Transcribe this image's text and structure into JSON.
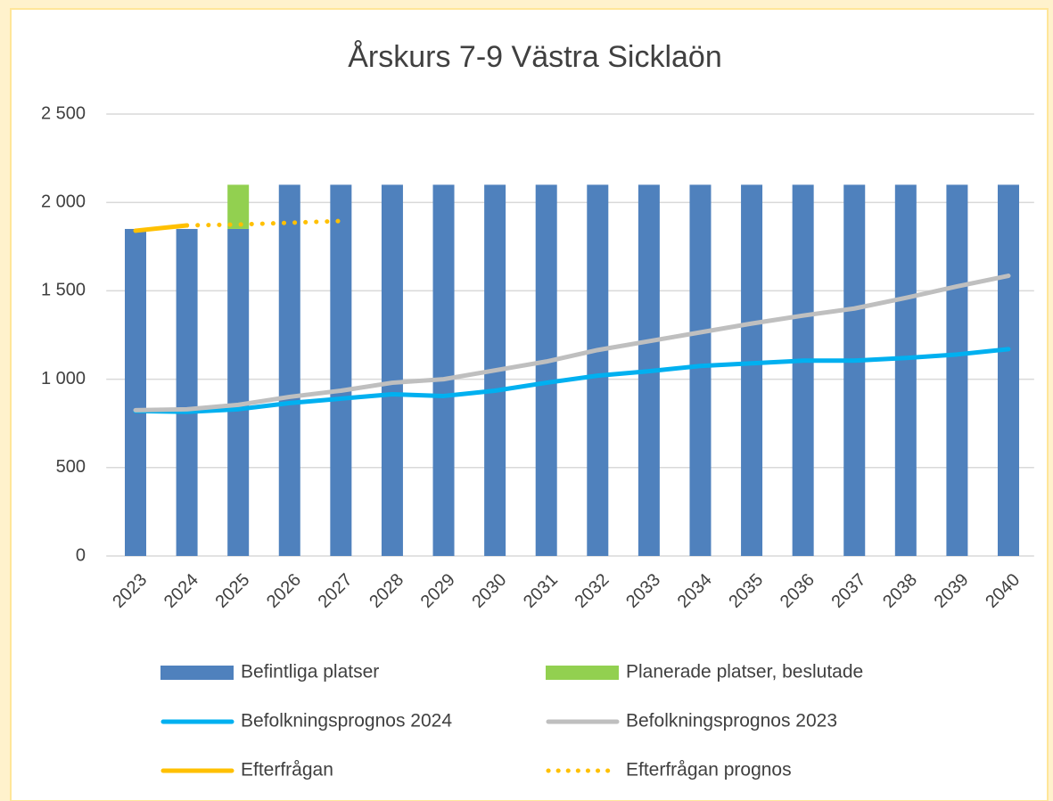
{
  "chart_data": {
    "type": "bar",
    "title": "Årskurs 7-9 Västra Sicklaön",
    "stacked": true,
    "categories": [
      "2023",
      "2024",
      "2025",
      "2026",
      "2027",
      "2028",
      "2029",
      "2030",
      "2031",
      "2032",
      "2033",
      "2034",
      "2035",
      "2036",
      "2037",
      "2038",
      "2039",
      "2040"
    ],
    "series": [
      {
        "name": "Befintliga platser",
        "type": "bar",
        "color": "#4f81bd",
        "values": [
          1850,
          1850,
          1850,
          2100,
          2100,
          2100,
          2100,
          2100,
          2100,
          2100,
          2100,
          2100,
          2100,
          2100,
          2100,
          2100,
          2100,
          2100
        ]
      },
      {
        "name": "Planerade platser, beslutade",
        "type": "bar",
        "color": "#92d050",
        "values": [
          null,
          null,
          250,
          null,
          null,
          null,
          null,
          null,
          null,
          null,
          null,
          null,
          null,
          null,
          null,
          null,
          null,
          null
        ]
      },
      {
        "name": "Befolkningsprognos 2024",
        "type": "line",
        "color": "#00b0f0",
        "values": [
          820,
          815,
          830,
          865,
          890,
          915,
          905,
          935,
          980,
          1020,
          1045,
          1075,
          1090,
          1105,
          1105,
          1120,
          1140,
          1170
        ]
      },
      {
        "name": "Befolkningsprognos 2023",
        "type": "line",
        "color": "#bfbfbf",
        "values": [
          825,
          830,
          855,
          900,
          935,
          980,
          1000,
          1050,
          1100,
          1165,
          1215,
          1265,
          1315,
          1360,
          1400,
          1460,
          1525,
          1585
        ]
      },
      {
        "name": "Efterfrågan",
        "type": "line",
        "color": "#ffc000",
        "values": [
          1840,
          1870,
          null,
          null,
          null,
          null,
          null,
          null,
          null,
          null,
          null,
          null,
          null,
          null,
          null,
          null,
          null,
          null
        ]
      },
      {
        "name": "Efterfrågan prognos",
        "type": "line",
        "color": "#ffc000",
        "dash": "dotted",
        "values": [
          null,
          1870,
          1875,
          1885,
          1895,
          null,
          null,
          null,
          null,
          null,
          null,
          null,
          null,
          null,
          null,
          null,
          null,
          null
        ]
      }
    ],
    "ylim": [
      0,
      2500
    ],
    "yticks": [
      0,
      500,
      {
        "value": 1000,
        "label": "1 000"
      },
      {
        "value": 1500,
        "label": "1 500"
      },
      {
        "value": 2000,
        "label": "2 000"
      },
      {
        "value": 2500,
        "label": "2 500"
      }
    ],
    "grid": true
  }
}
